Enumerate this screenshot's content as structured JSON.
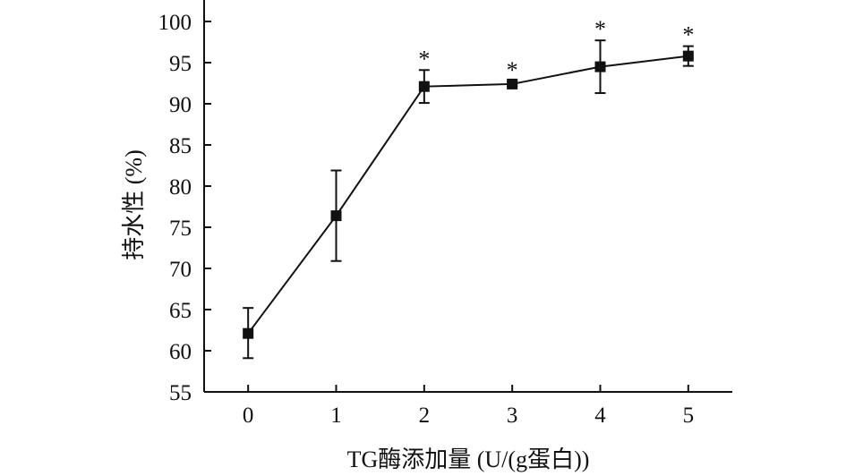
{
  "chart_data": {
    "type": "line",
    "title": "",
    "xlabel": "TG酶添加量 (U/(g蛋白))",
    "ylabel": "持水性 (%)",
    "x": [
      0,
      1,
      2,
      3,
      4,
      5
    ],
    "xlim": [
      -0.5,
      5.5
    ],
    "ylim": [
      55,
      100
    ],
    "xticks": [
      0,
      1,
      2,
      3,
      4,
      5
    ],
    "yticks": [
      55,
      60,
      65,
      70,
      75,
      80,
      85,
      90,
      95,
      100
    ],
    "grid": false,
    "legend": "none",
    "series": [
      {
        "values": [
          62.1,
          76.4,
          92.1,
          92.4,
          94.5,
          95.8
        ],
        "error_low": [
          59.1,
          70.9,
          90.1,
          92.1,
          91.3,
          94.6
        ],
        "error_high": [
          65.2,
          81.9,
          94.1,
          92.7,
          97.7,
          97.0
        ],
        "marker": "square",
        "color": "#111111"
      }
    ],
    "annotations": [
      {
        "x": 2,
        "text": "*"
      },
      {
        "x": 3,
        "text": "*"
      },
      {
        "x": 4,
        "text": "*"
      },
      {
        "x": 5,
        "text": "*"
      }
    ]
  }
}
